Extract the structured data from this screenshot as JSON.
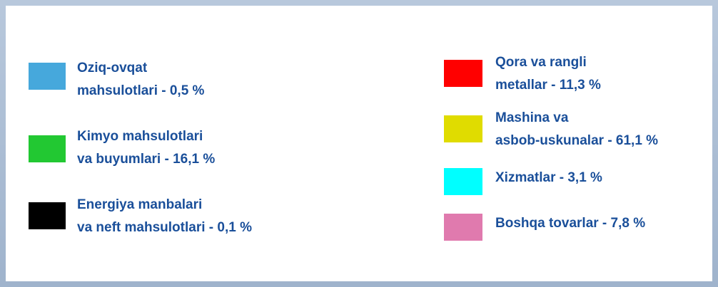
{
  "legend": {
    "items": [
      {
        "lines": [
          "Oziq-ovqat",
          "mahsulotlari - 0,5 %"
        ],
        "color": "#46a8dc"
      },
      {
        "lines": [
          "Kimyo mahsulotlari",
          "va buyumlari - 16,1 %"
        ],
        "color": "#22c832"
      },
      {
        "lines": [
          "Energiya manbalari",
          "va neft mahsulotlari - 0,1 %"
        ],
        "color": "#000000"
      },
      {
        "lines": [
          "Qora va rangli",
          "metallar - 11,3 %"
        ],
        "color": "#ff0000"
      },
      {
        "lines": [
          "Mashina va",
          "asbob-uskunalar - 61,1 %"
        ],
        "color": "#e0dc00"
      },
      {
        "lines": [
          "Xizmatlar - 3,1 %"
        ],
        "color": "#00ffff"
      },
      {
        "lines": [
          "Boshqa tovarlar - 7,8 %"
        ],
        "color": "#e07aae"
      }
    ]
  }
}
